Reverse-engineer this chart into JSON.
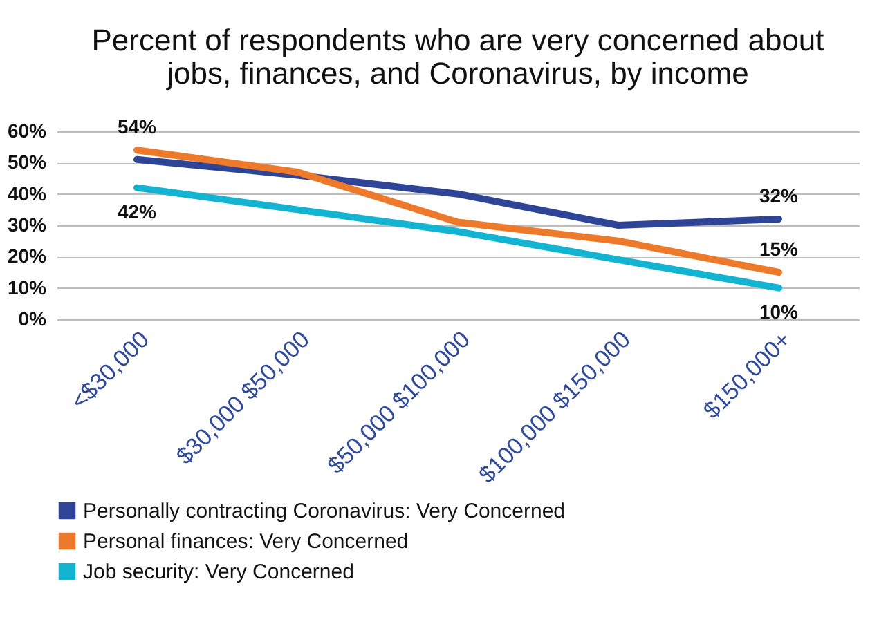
{
  "chart_data": {
    "type": "line",
    "title": "Percent of respondents who are very concerned about jobs, finances, and Coronavirus, by income",
    "categories": [
      "<$30,000",
      "$30,000 $50,000",
      "$50,000 $100,000",
      "$100,000 $150,000",
      "$150,000+"
    ],
    "series": [
      {
        "name": "Personally contracting Coronavirus: Very Concerned",
        "color": "#2e4597",
        "values": [
          51,
          46,
          40,
          30,
          32
        ],
        "value_labels": [
          null,
          null,
          null,
          null,
          "32%"
        ]
      },
      {
        "name": "Personal finances: Very Concerned",
        "color": "#ec7a2a",
        "values": [
          54,
          47,
          31,
          25,
          15
        ],
        "value_labels": [
          "54%",
          null,
          null,
          null,
          "15%"
        ]
      },
      {
        "name": "Job security: Very Concerned",
        "color": "#13b4d2",
        "values": [
          42,
          35,
          28,
          19,
          10
        ],
        "value_labels": [
          "42%",
          null,
          null,
          null,
          "10%"
        ]
      }
    ],
    "ylim": [
      0,
      60
    ],
    "yticks": [
      {
        "value": 0,
        "label": "0%"
      },
      {
        "value": 10,
        "label": "10%"
      },
      {
        "value": 20,
        "label": "20%"
      },
      {
        "value": 30,
        "label": "30%"
      },
      {
        "value": 40,
        "label": "40%"
      },
      {
        "value": 50,
        "label": "50%"
      },
      {
        "value": 60,
        "label": "60%"
      }
    ],
    "grid": "y",
    "legend": "bottom",
    "marker": "none",
    "line_style": "solid"
  }
}
